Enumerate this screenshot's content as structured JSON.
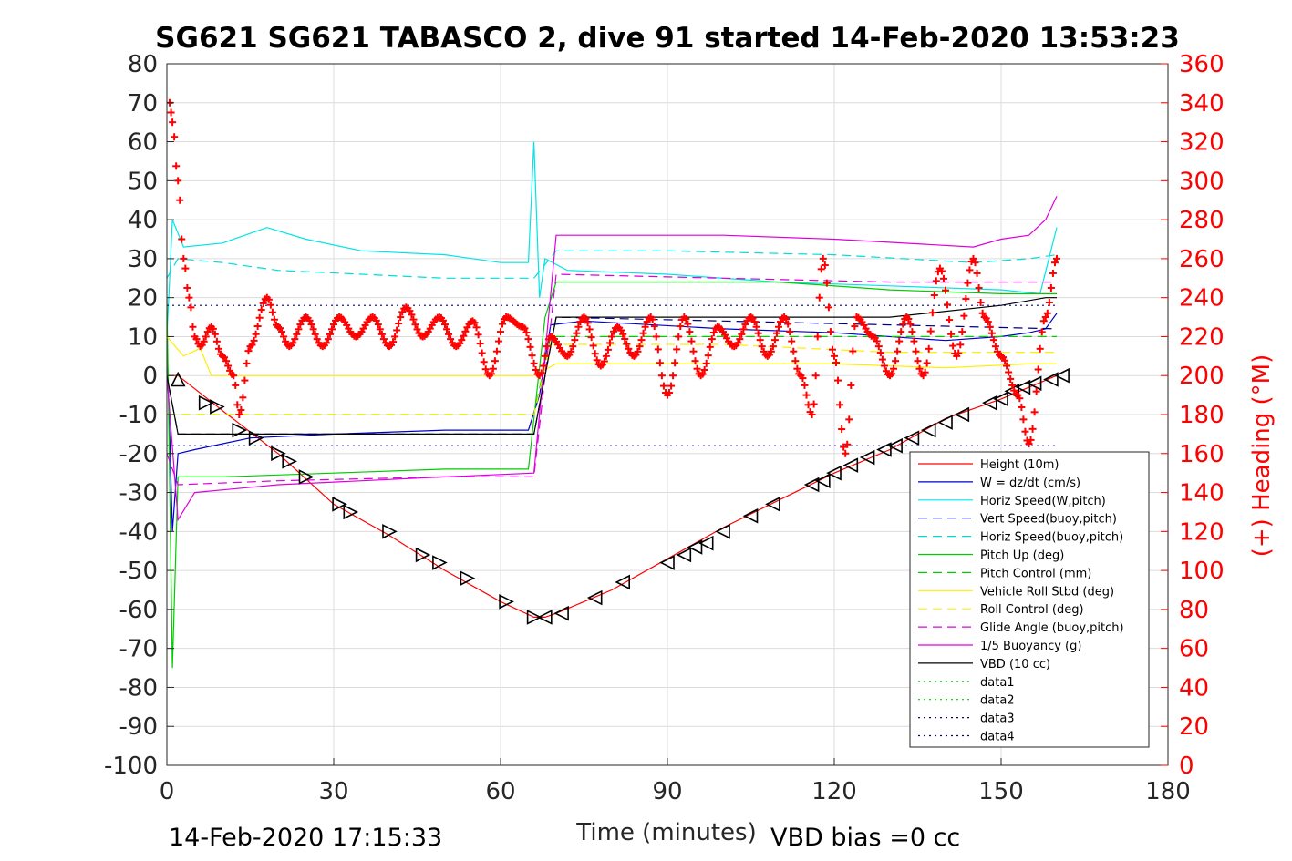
{
  "chart_data": {
    "type": "line",
    "title": "SG621 SG621 TABASCO 2, dive 91 started 14-Feb-2020 13:53:23",
    "xlabel": "Time (minutes)",
    "ylabel_right": "(+) Heading (°M)",
    "xlim": [
      0,
      180
    ],
    "ylim": [
      -100,
      80
    ],
    "ylim_right": [
      0,
      360
    ],
    "x_ticks": [
      "0",
      "30",
      "60",
      "90",
      "120",
      "150",
      "180"
    ],
    "y_ticks": [
      "80",
      "70",
      "60",
      "50",
      "40",
      "30",
      "20",
      "10",
      "0",
      "-10",
      "-20",
      "-30",
      "-40",
      "-50",
      "-60",
      "-70",
      "-80",
      "-90",
      "-100"
    ],
    "y_ticks_right": [
      "360",
      "340",
      "320",
      "300",
      "280",
      "260",
      "240",
      "220",
      "200",
      "180",
      "160",
      "140",
      "120",
      "100",
      "80",
      "60",
      "40",
      "20",
      "0"
    ],
    "grid": true,
    "legend_position": "lower-right",
    "colors": {
      "heading": "#ff0000",
      "right_axis": "#ff0000"
    },
    "series": [
      {
        "name": "Height (10m)",
        "color": "#ff0000",
        "dash": "solid",
        "points": [
          [
            0,
            0
          ],
          [
            2,
            0
          ],
          [
            10,
            -9
          ],
          [
            20,
            -20
          ],
          [
            30,
            -33
          ],
          [
            40,
            -41
          ],
          [
            50,
            -50
          ],
          [
            60,
            -58
          ],
          [
            66,
            -62
          ],
          [
            68,
            -62
          ],
          [
            70,
            -61
          ],
          [
            80,
            -55
          ],
          [
            90,
            -47
          ],
          [
            100,
            -39
          ],
          [
            110,
            -32
          ],
          [
            120,
            -25
          ],
          [
            130,
            -19
          ],
          [
            140,
            -11
          ],
          [
            150,
            -6
          ],
          [
            155,
            -3
          ],
          [
            160,
            0
          ]
        ]
      },
      {
        "name": "W = dz/dt (cm/s)",
        "color": "#0000cc",
        "dash": "solid",
        "points": [
          [
            0,
            10
          ],
          [
            1,
            -40
          ],
          [
            2,
            -20
          ],
          [
            5,
            -19
          ],
          [
            15,
            -16
          ],
          [
            30,
            -15
          ],
          [
            50,
            -14
          ],
          [
            65,
            -14
          ],
          [
            67,
            -5
          ],
          [
            69,
            13
          ],
          [
            75,
            14
          ],
          [
            100,
            12
          ],
          [
            120,
            11
          ],
          [
            140,
            9
          ],
          [
            150,
            10
          ],
          [
            155,
            11
          ],
          [
            158,
            12
          ],
          [
            160,
            16
          ]
        ]
      },
      {
        "name": "Horiz Speed(W,pitch)",
        "color": "#00e5e5",
        "dash": "solid",
        "points": [
          [
            0,
            10
          ],
          [
            1,
            40
          ],
          [
            3,
            33
          ],
          [
            10,
            34
          ],
          [
            18,
            38
          ],
          [
            25,
            35
          ],
          [
            35,
            32
          ],
          [
            50,
            31
          ],
          [
            60,
            29
          ],
          [
            65,
            29
          ],
          [
            66,
            60
          ],
          [
            67,
            20
          ],
          [
            68,
            30
          ],
          [
            72,
            27
          ],
          [
            90,
            26
          ],
          [
            110,
            24
          ],
          [
            130,
            23
          ],
          [
            150,
            22
          ],
          [
            157,
            21
          ],
          [
            160,
            38
          ]
        ]
      },
      {
        "name": "Vert Speed(buoy,pitch)",
        "color": "#00008b",
        "dash": "dash",
        "points": [
          [
            0,
            0
          ],
          [
            2,
            -15
          ],
          [
            30,
            -15
          ],
          [
            60,
            -15
          ],
          [
            66,
            -15
          ],
          [
            70,
            15
          ],
          [
            100,
            14
          ],
          [
            130,
            13
          ],
          [
            160,
            12
          ]
        ]
      },
      {
        "name": "Horiz Speed(buoy,pitch)",
        "color": "#00dddd",
        "dash": "dash",
        "points": [
          [
            0,
            25
          ],
          [
            2,
            30
          ],
          [
            10,
            29
          ],
          [
            20,
            27
          ],
          [
            35,
            26
          ],
          [
            50,
            25
          ],
          [
            66,
            25
          ],
          [
            70,
            32
          ],
          [
            90,
            32
          ],
          [
            120,
            31
          ],
          [
            145,
            29
          ],
          [
            155,
            30
          ],
          [
            160,
            31
          ]
        ]
      },
      {
        "name": "Pitch Up (deg)",
        "color": "#00cc00",
        "dash": "solid",
        "points": [
          [
            0,
            20
          ],
          [
            1,
            -75
          ],
          [
            2,
            -26
          ],
          [
            10,
            -26
          ],
          [
            30,
            -25
          ],
          [
            50,
            -24
          ],
          [
            65,
            -24
          ],
          [
            68,
            15
          ],
          [
            70,
            24
          ],
          [
            90,
            24
          ],
          [
            110,
            24
          ],
          [
            130,
            22
          ],
          [
            150,
            21
          ],
          [
            160,
            21
          ]
        ]
      },
      {
        "name": "Pitch Control (mm)",
        "color": "#00cc00",
        "dash": "dash",
        "points": [
          [
            0,
            -10
          ],
          [
            66,
            -10
          ],
          [
            69,
            10
          ],
          [
            100,
            10
          ],
          [
            130,
            10
          ],
          [
            160,
            10
          ]
        ]
      },
      {
        "name": "Vehicle Roll Stbd (deg)",
        "color": "#ffee00",
        "dash": "solid",
        "points": [
          [
            0,
            10
          ],
          [
            3,
            5
          ],
          [
            6,
            7
          ],
          [
            8,
            0
          ],
          [
            20,
            0
          ],
          [
            30,
            0
          ],
          [
            40,
            0
          ],
          [
            50,
            0
          ],
          [
            66,
            0
          ],
          [
            70,
            3
          ],
          [
            100,
            3
          ],
          [
            120,
            3
          ],
          [
            140,
            2
          ],
          [
            155,
            3
          ],
          [
            160,
            3
          ]
        ]
      },
      {
        "name": "Roll Control (deg)",
        "color": "#ffee00",
        "dash": "dash",
        "points": [
          [
            0,
            -10
          ],
          [
            30,
            -10
          ],
          [
            60,
            -10
          ],
          [
            66,
            -10
          ],
          [
            69,
            8
          ],
          [
            100,
            8
          ],
          [
            130,
            6
          ],
          [
            160,
            6
          ]
        ]
      },
      {
        "name": "Glide Angle (buoy,pitch)",
        "color": "#dd00dd",
        "dash": "dash",
        "points": [
          [
            0,
            -20
          ],
          [
            2,
            -28
          ],
          [
            20,
            -27
          ],
          [
            50,
            -26
          ],
          [
            66,
            -26
          ],
          [
            70,
            26
          ],
          [
            100,
            25
          ],
          [
            130,
            24
          ],
          [
            160,
            24
          ]
        ]
      },
      {
        "name": "1/5 Buoyancy (g)",
        "color": "#dd00dd",
        "dash": "solid",
        "points": [
          [
            0,
            0
          ],
          [
            2,
            -37
          ],
          [
            5,
            -30
          ],
          [
            20,
            -28
          ],
          [
            50,
            -26
          ],
          [
            66,
            -25
          ],
          [
            70,
            36
          ],
          [
            100,
            36
          ],
          [
            120,
            35
          ],
          [
            145,
            33
          ],
          [
            150,
            35
          ],
          [
            155,
            36
          ],
          [
            158,
            40
          ],
          [
            160,
            46
          ]
        ]
      },
      {
        "name": "VBD (10 cc)",
        "color": "#000000",
        "dash": "solid",
        "points": [
          [
            0,
            0
          ],
          [
            2,
            -15
          ],
          [
            66,
            -15
          ],
          [
            70,
            15
          ],
          [
            100,
            15
          ],
          [
            130,
            15
          ],
          [
            150,
            18
          ],
          [
            158,
            20
          ],
          [
            160,
            20
          ]
        ]
      },
      {
        "name": "data1",
        "color": "#00cc00",
        "dash": "dot",
        "points": []
      },
      {
        "name": "data2",
        "color": "#00cc00",
        "dash": "dot",
        "points": []
      },
      {
        "name": "data3",
        "color": "#000080",
        "dash": "dot",
        "points": [
          [
            0,
            18
          ],
          [
            160,
            18
          ]
        ]
      },
      {
        "name": "data4",
        "color": "#000080",
        "dash": "dot",
        "points": [
          [
            0,
            -18
          ],
          [
            160,
            -18
          ]
        ]
      }
    ],
    "heading_markers": {
      "name": "(+) Heading (°M)",
      "color": "#ff0000",
      "points": [
        [
          0.5,
          340
        ],
        [
          1,
          330
        ],
        [
          2,
          300
        ],
        [
          3,
          260
        ],
        [
          4,
          240
        ],
        [
          5,
          220
        ],
        [
          6,
          215
        ],
        [
          8,
          225
        ],
        [
          10,
          210
        ],
        [
          12,
          200
        ],
        [
          13,
          180
        ],
        [
          15,
          215
        ],
        [
          18,
          240
        ],
        [
          20,
          225
        ],
        [
          22,
          215
        ],
        [
          25,
          230
        ],
        [
          28,
          215
        ],
        [
          31,
          230
        ],
        [
          34,
          220
        ],
        [
          37,
          230
        ],
        [
          40,
          215
        ],
        [
          43,
          235
        ],
        [
          46,
          220
        ],
        [
          49,
          230
        ],
        [
          52,
          215
        ],
        [
          55,
          228
        ],
        [
          58,
          200
        ],
        [
          61,
          230
        ],
        [
          64,
          225
        ],
        [
          67,
          200
        ],
        [
          69,
          220
        ],
        [
          72,
          210
        ],
        [
          75,
          230
        ],
        [
          78,
          205
        ],
        [
          81,
          225
        ],
        [
          84,
          210
        ],
        [
          87,
          230
        ],
        [
          90,
          190
        ],
        [
          93,
          230
        ],
        [
          96,
          200
        ],
        [
          99,
          225
        ],
        [
          102,
          215
        ],
        [
          105,
          230
        ],
        [
          108,
          210
        ],
        [
          111,
          230
        ],
        [
          114,
          200
        ],
        [
          116,
          180
        ],
        [
          118,
          260
        ],
        [
          120,
          210
        ],
        [
          122,
          160
        ],
        [
          124,
          230
        ],
        [
          127,
          220
        ],
        [
          130,
          200
        ],
        [
          133,
          230
        ],
        [
          136,
          200
        ],
        [
          139,
          255
        ],
        [
          142,
          210
        ],
        [
          145,
          260
        ],
        [
          147,
          230
        ],
        [
          150,
          210
        ],
        [
          153,
          190
        ],
        [
          155,
          165
        ],
        [
          158,
          230
        ],
        [
          160,
          260
        ]
      ]
    },
    "depth_markers": {
      "name": "Height (10m) triangles",
      "points": [
        [
          2,
          -1
        ],
        [
          7,
          -7
        ],
        [
          9,
          -8
        ],
        [
          13,
          -14
        ],
        [
          16,
          -16
        ],
        [
          20,
          -20
        ],
        [
          22,
          -22
        ],
        [
          25,
          -26
        ],
        [
          31,
          -33
        ],
        [
          33,
          -35
        ],
        [
          40,
          -40
        ],
        [
          46,
          -46
        ],
        [
          49,
          -48
        ],
        [
          54,
          -52
        ],
        [
          61,
          -58
        ],
        [
          66,
          -62
        ],
        [
          68,
          -62
        ],
        [
          71,
          -61
        ],
        [
          77,
          -57
        ],
        [
          82,
          -53
        ],
        [
          90,
          -48
        ],
        [
          93,
          -46
        ],
        [
          95,
          -44
        ],
        [
          97,
          -43
        ],
        [
          100,
          -40
        ],
        [
          105,
          -36
        ],
        [
          109,
          -33
        ],
        [
          116,
          -28
        ],
        [
          118,
          -27
        ],
        [
          120,
          -25
        ],
        [
          123,
          -23
        ],
        [
          126,
          -21
        ],
        [
          129,
          -19
        ],
        [
          131,
          -18
        ],
        [
          134,
          -16
        ],
        [
          137,
          -14
        ],
        [
          140,
          -12
        ],
        [
          143,
          -10
        ],
        [
          148,
          -7
        ],
        [
          150,
          -6
        ],
        [
          152,
          -4
        ],
        [
          154,
          -3
        ],
        [
          156,
          -2
        ],
        [
          159,
          -1
        ],
        [
          161,
          0
        ]
      ]
    },
    "footer_left": "14-Feb-2020 17:15:33",
    "footer_right": "VBD bias =0 cc"
  }
}
